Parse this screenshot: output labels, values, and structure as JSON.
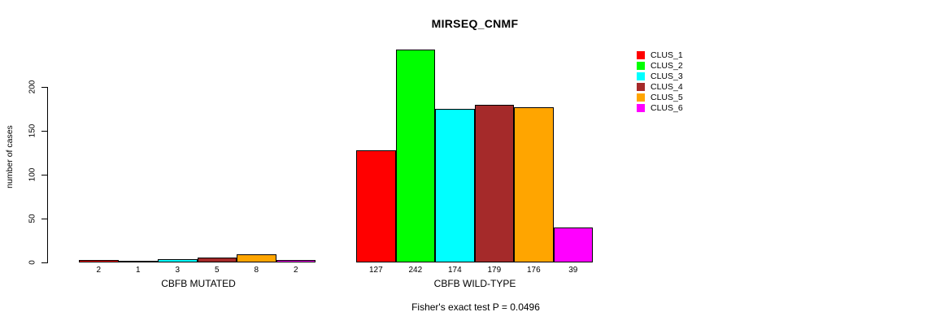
{
  "title": "MIRSEQ_CNMF",
  "y_axis": {
    "label": "number of cases",
    "ticks": [
      0,
      50,
      100,
      150,
      200
    ]
  },
  "legend": {
    "items": [
      {
        "label": "CLUS_1",
        "color": "#FF0000"
      },
      {
        "label": "CLUS_2",
        "color": "#00FF00"
      },
      {
        "label": "CLUS_3",
        "color": "#00FFFF"
      },
      {
        "label": "CLUS_4",
        "color": "#A52A2A"
      },
      {
        "label": "CLUS_5",
        "color": "#FFA500"
      },
      {
        "label": "CLUS_6",
        "color": "#FF00FF"
      }
    ]
  },
  "footer": {
    "text": "Fisher's exact test P = 0.0496"
  },
  "chart_data": {
    "type": "bar",
    "title": "MIRSEQ_CNMF",
    "xlabel": "",
    "ylabel": "number of cases",
    "ylim": [
      0,
      242
    ],
    "y_ticks": [
      0,
      50,
      100,
      150,
      200
    ],
    "grid": false,
    "legend_position": "right",
    "series_names": [
      "CLUS_1",
      "CLUS_2",
      "CLUS_3",
      "CLUS_4",
      "CLUS_5",
      "CLUS_6"
    ],
    "series_colors": [
      "#FF0000",
      "#00FF00",
      "#00FFFF",
      "#A52A2A",
      "#FFA500",
      "#FF00FF"
    ],
    "groups": [
      {
        "label": "CBFB MUTATED",
        "values": [
          2,
          1,
          3,
          5,
          8,
          2
        ]
      },
      {
        "label": "CBFB WILD-TYPE",
        "values": [
          127,
          242,
          174,
          179,
          176,
          39
        ]
      }
    ],
    "annotation": "Fisher's exact test P = 0.0496"
  }
}
